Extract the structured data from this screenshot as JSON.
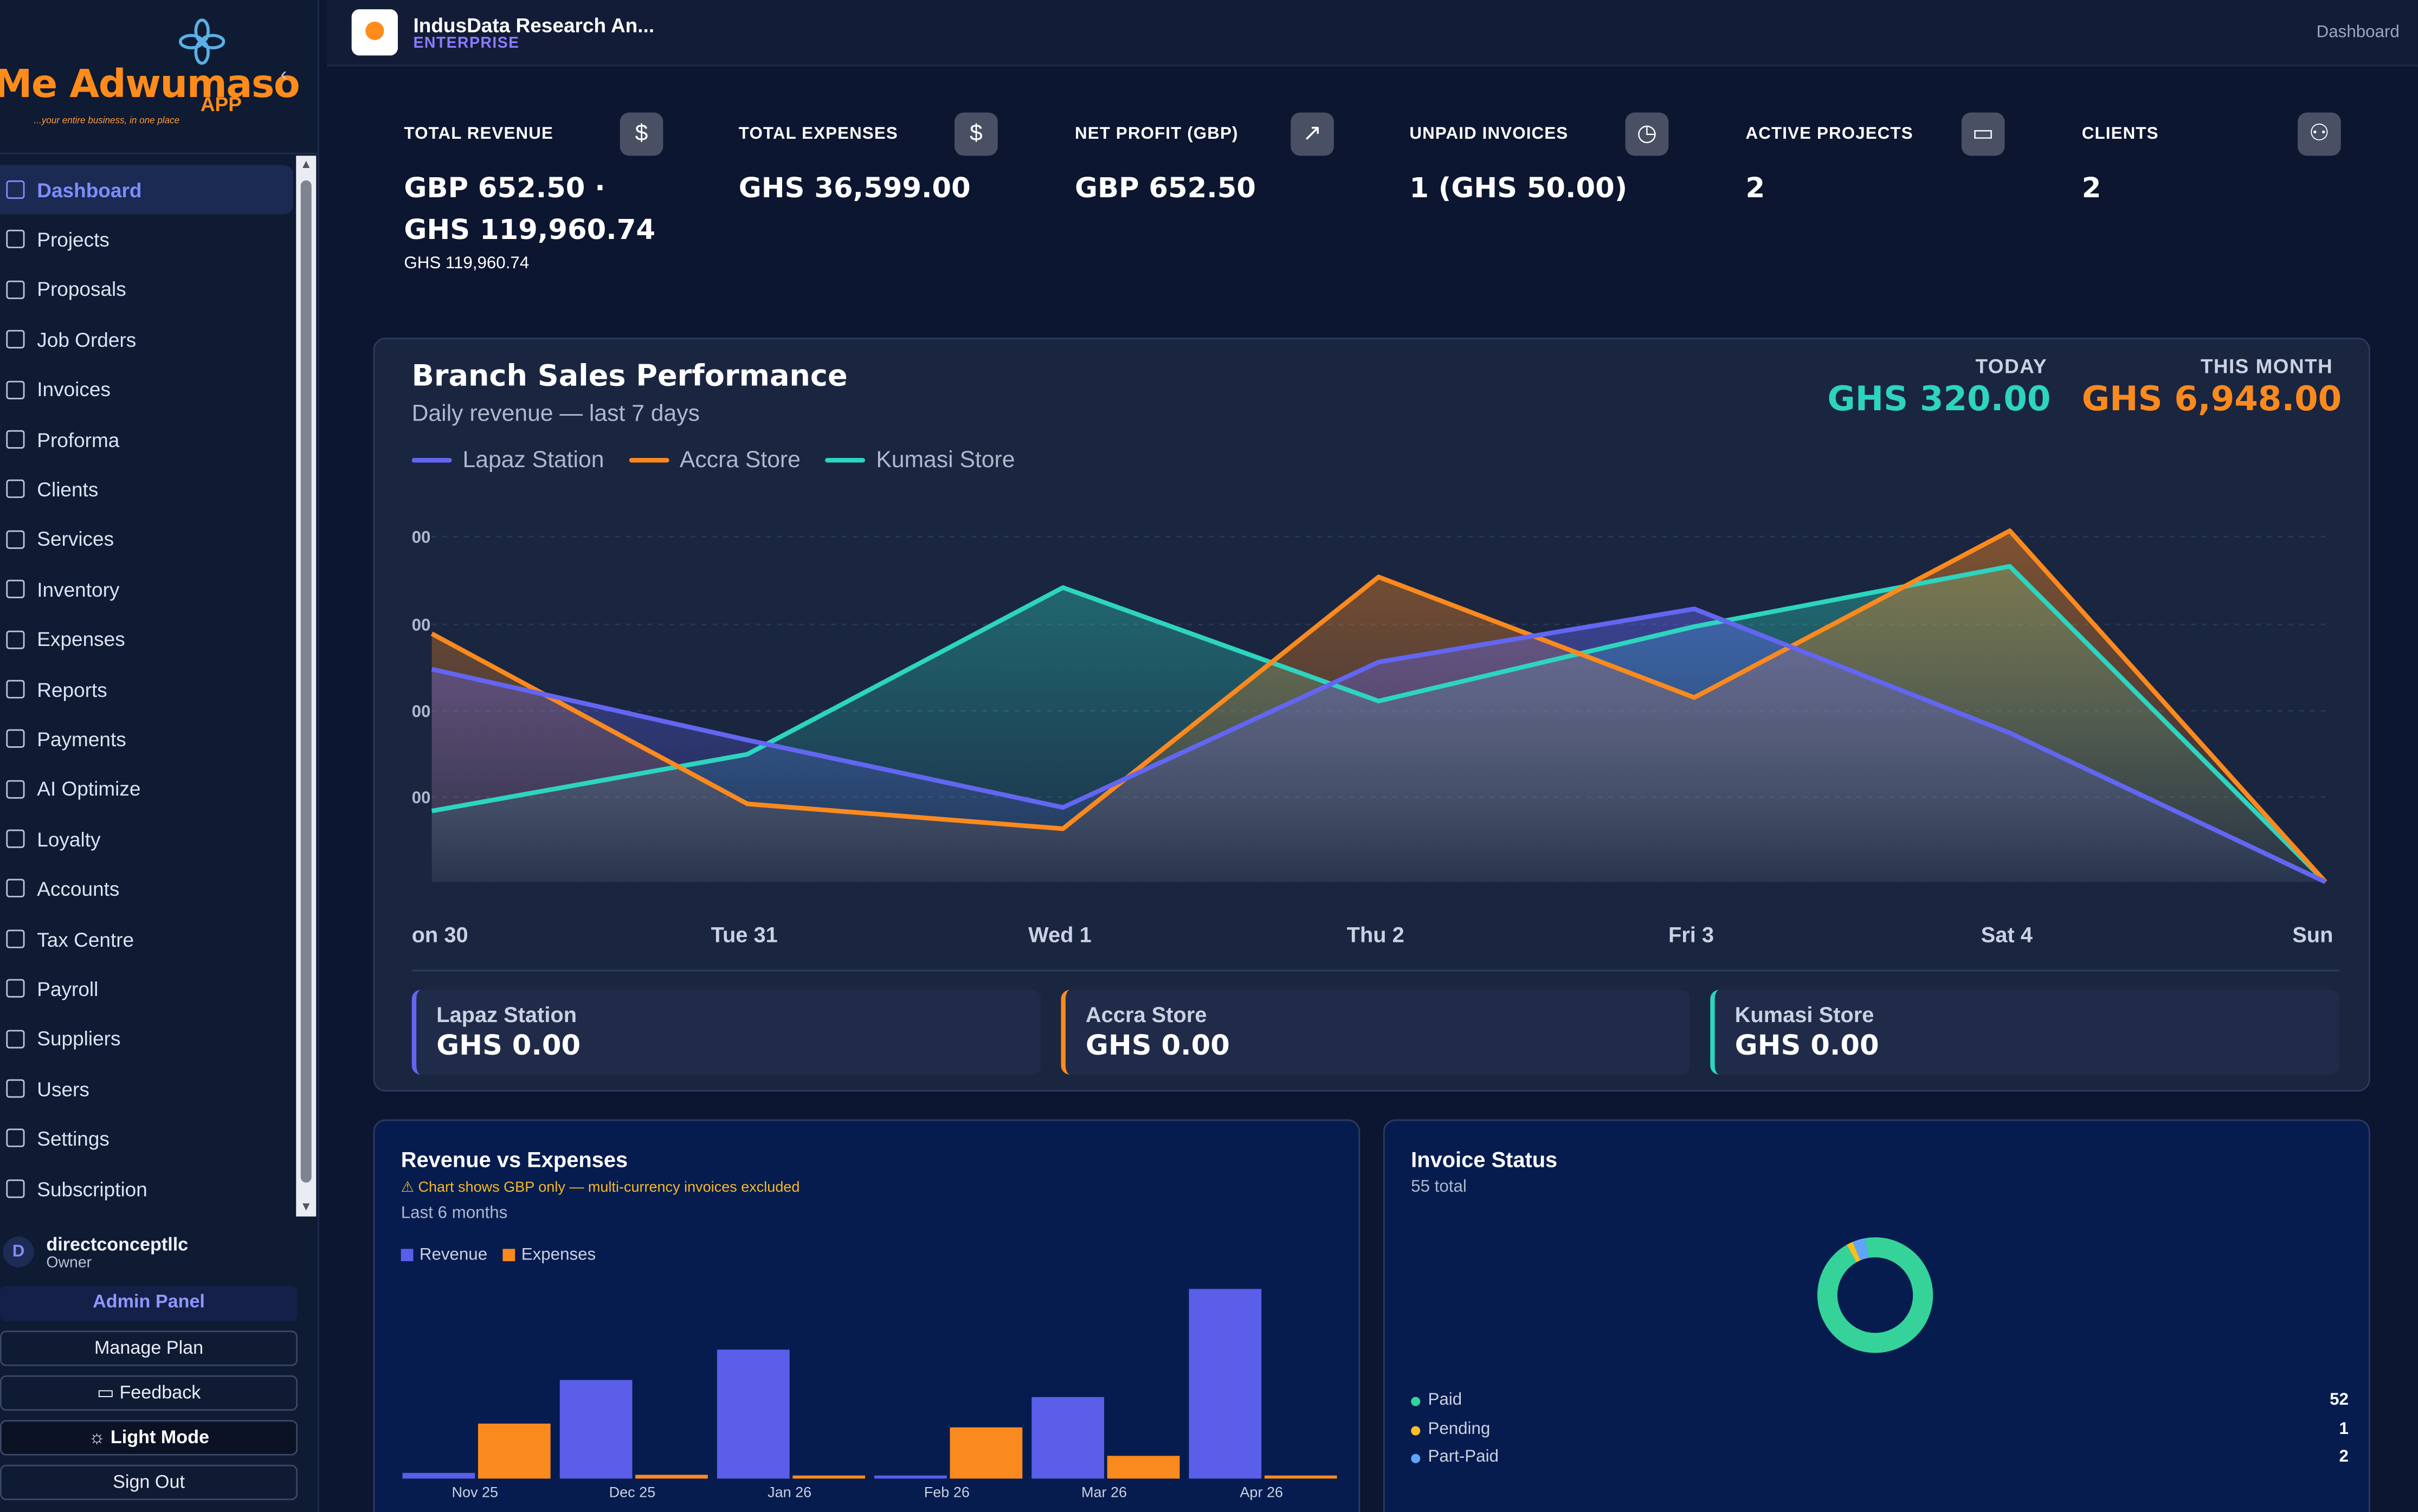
{
  "sidebar": {
    "logo_text": "Me Adwumaso",
    "logo_app": "APP",
    "logo_tagline": "...your entire business, in one place",
    "items": [
      {
        "label": "Dashboard",
        "icon": "grid-icon"
      },
      {
        "label": "Projects",
        "icon": "folder-icon"
      },
      {
        "label": "Proposals",
        "icon": "document-icon"
      },
      {
        "label": "Job Orders",
        "icon": "printer-icon"
      },
      {
        "label": "Invoices",
        "icon": "invoice-icon"
      },
      {
        "label": "Proforma",
        "icon": "document-icon"
      },
      {
        "label": "Clients",
        "icon": "users-icon"
      },
      {
        "label": "Services",
        "icon": "box-icon"
      },
      {
        "label": "Inventory",
        "icon": "hexagon-icon"
      },
      {
        "label": "Expenses",
        "icon": "dollar-icon"
      },
      {
        "label": "Reports",
        "icon": "bar-chart-icon"
      },
      {
        "label": "Payments",
        "icon": "credit-card-icon"
      },
      {
        "label": "AI Optimize",
        "icon": "star-icon"
      },
      {
        "label": "Loyalty",
        "icon": "heart-icon"
      },
      {
        "label": "Accounts",
        "icon": "book-icon"
      },
      {
        "label": "Tax Centre",
        "icon": "receipt-icon"
      },
      {
        "label": "Payroll",
        "icon": "building-icon"
      },
      {
        "label": "Suppliers",
        "icon": "home-icon"
      },
      {
        "label": "Users",
        "icon": "user-icon"
      },
      {
        "label": "Settings",
        "icon": "gear-icon"
      },
      {
        "label": "Subscription",
        "icon": "credit-card-icon"
      }
    ],
    "user": {
      "initial": "D",
      "name": "directconceptllc",
      "role": "Owner"
    },
    "buttons": {
      "admin": "Admin Panel",
      "manage": "Manage Plan",
      "feedback": "Feedback",
      "light": "Light Mode",
      "signout": "Sign Out"
    }
  },
  "topbar": {
    "org_name": "IndusData Research An...",
    "org_plan": "ENTERPRISE",
    "breadcrumb": "Dashboard"
  },
  "cards": [
    {
      "label": "TOTAL REVENUE",
      "value": "GBP 652.50 · GHS 119,960.74",
      "sub": "GHS 119,960.74",
      "icon": "dollar-icon",
      "color": "#1e8a45"
    },
    {
      "label": "TOTAL EXPENSES",
      "value": "GHS 36,599.00",
      "sub": "",
      "icon": "dollar-icon",
      "color": "#fb8a1e"
    },
    {
      "label": "NET PROFIT (GBP)",
      "value": "GBP 652.50",
      "sub": "",
      "icon": "trend-up-icon",
      "color": "#35d399"
    },
    {
      "label": "UNPAID INVOICES",
      "value": "1 (GHS 50.00)",
      "sub": "",
      "icon": "clock-icon",
      "color": "#fbbd24"
    },
    {
      "label": "ACTIVE PROJECTS",
      "value": "2",
      "sub": "",
      "icon": "folder-icon",
      "color": "#6366f1"
    },
    {
      "label": "CLIENTS",
      "value": "2",
      "sub": "",
      "icon": "users-icon",
      "color": "#a78bfa"
    }
  ],
  "branch": {
    "title": "Branch Sales Performance",
    "subtitle": "Daily revenue — last 7 days",
    "today_label": "TODAY",
    "today_value": "GHS 320.00",
    "month_label": "THIS MONTH",
    "month_value": "GHS 6,948.00",
    "stores": [
      {
        "name": "Lapaz Station",
        "value": "GHS 0.00",
        "color": "#6366f1"
      },
      {
        "name": "Accra Store",
        "value": "GHS 0.00",
        "color": "#fb8a1e"
      },
      {
        "name": "Kumasi Store",
        "value": "GHS 0.00",
        "color": "#2dd4bf"
      }
    ]
  },
  "revenue_panel": {
    "title": "Revenue vs Expenses",
    "warning": "⚠ Chart shows GBP only — multi-currency invoices excluded",
    "subtitle": "Last 6 months",
    "legend": [
      "Revenue",
      "Expenses"
    ]
  },
  "invoice_panel": {
    "title": "Invoice Status",
    "subtitle": "55 total",
    "statuses": [
      {
        "name": "Paid",
        "count": "52",
        "color": "#35d399"
      },
      {
        "name": "Pending",
        "count": "1",
        "color": "#fbbd24"
      },
      {
        "name": "Part-Paid",
        "count": "2",
        "color": "#60a5fa"
      }
    ]
  },
  "chart_data": [
    {
      "type": "area",
      "title": "Branch Sales Performance",
      "subtitle": "Daily revenue — last 7 days",
      "x": [
        "on 30",
        "Tue 31",
        "Wed 1",
        "Thu 2",
        "Fri 3",
        "Sat 4",
        "Sun"
      ],
      "y_tick_labels": [
        "00",
        "00",
        "00",
        "00"
      ],
      "ylim": [
        0,
        1
      ],
      "grid": true,
      "legend": "top-left",
      "series": [
        {
          "name": "Lapaz Station",
          "color": "#6366f1",
          "values": [
            0.6,
            0.4,
            0.21,
            0.62,
            0.77,
            0.42,
            0.0
          ]
        },
        {
          "name": "Accra Store",
          "color": "#fb8a1e",
          "values": [
            0.7,
            0.22,
            0.15,
            0.86,
            0.52,
            0.99,
            0.0
          ]
        },
        {
          "name": "Kumasi Store",
          "color": "#2dd4bf",
          "values": [
            0.2,
            0.36,
            0.83,
            0.51,
            0.72,
            0.89,
            0.0
          ]
        }
      ]
    },
    {
      "type": "bar",
      "title": "Revenue vs Expenses",
      "categories": [
        "Nov 25",
        "Dec 25",
        "Jan 26",
        "Feb 26",
        "Mar 26",
        "Apr 26"
      ],
      "legend": "top-left",
      "series": [
        {
          "name": "Revenue",
          "color": "#5a5ee8",
          "values": [
            3,
            52,
            68,
            1,
            43,
            100
          ]
        },
        {
          "name": "Expenses",
          "color": "#fb8a1e",
          "values": [
            29,
            2,
            1,
            27,
            12,
            1
          ]
        }
      ]
    },
    {
      "type": "pie",
      "title": "Invoice Status",
      "categories": [
        "Paid",
        "Pending",
        "Part-Paid"
      ],
      "values": [
        52,
        1,
        2
      ],
      "colors": [
        "#35d399",
        "#fbbd24",
        "#60a5fa"
      ]
    }
  ]
}
